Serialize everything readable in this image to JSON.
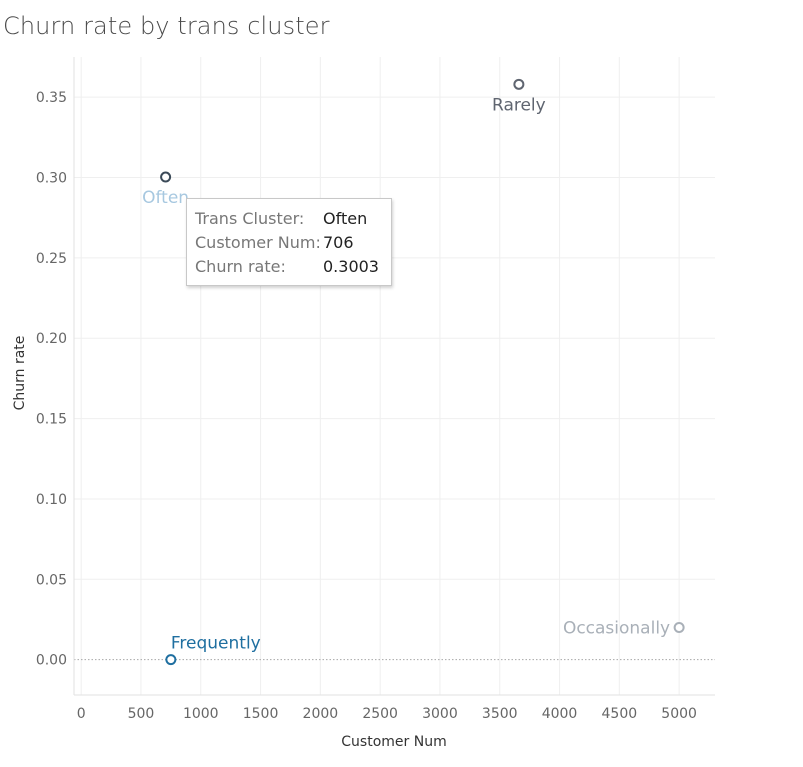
{
  "chart_data": {
    "type": "scatter",
    "title": "Churn rate by trans cluster",
    "xlabel": "Customer Num",
    "ylabel": "Churn rate",
    "xlim": [
      -60,
      5300
    ],
    "ylim": [
      -0.022,
      0.375
    ],
    "x_ticks": [
      0,
      500,
      1000,
      1500,
      2000,
      2500,
      3000,
      3500,
      4000,
      4500,
      5000
    ],
    "y_ticks": [
      "0.00",
      "0.05",
      "0.10",
      "0.15",
      "0.20",
      "0.25",
      "0.30",
      "0.35"
    ],
    "grid": true,
    "points": [
      {
        "name": "Rarely",
        "x": 3660,
        "y": 0.358,
        "color": "#5f6570",
        "label_position": "below"
      },
      {
        "name": "Often",
        "x": 706,
        "y": 0.3003,
        "color": "#a7c8e0",
        "marker_color": "#3b4a58",
        "label_position": "below"
      },
      {
        "name": "Frequently",
        "x": 750,
        "y": 0.0,
        "color": "#1f6fa0",
        "label_position": "above-right"
      },
      {
        "name": "Occasionally",
        "x": 5000,
        "y": 0.02,
        "color": "#a9b0b8",
        "label_position": "left"
      }
    ],
    "tooltip": {
      "rows": [
        {
          "key": "Trans Cluster:",
          "value": "Often"
        },
        {
          "key": "Customer Num:",
          "value": "706"
        },
        {
          "key": "Churn rate:",
          "value": "0.3003"
        }
      ]
    }
  }
}
